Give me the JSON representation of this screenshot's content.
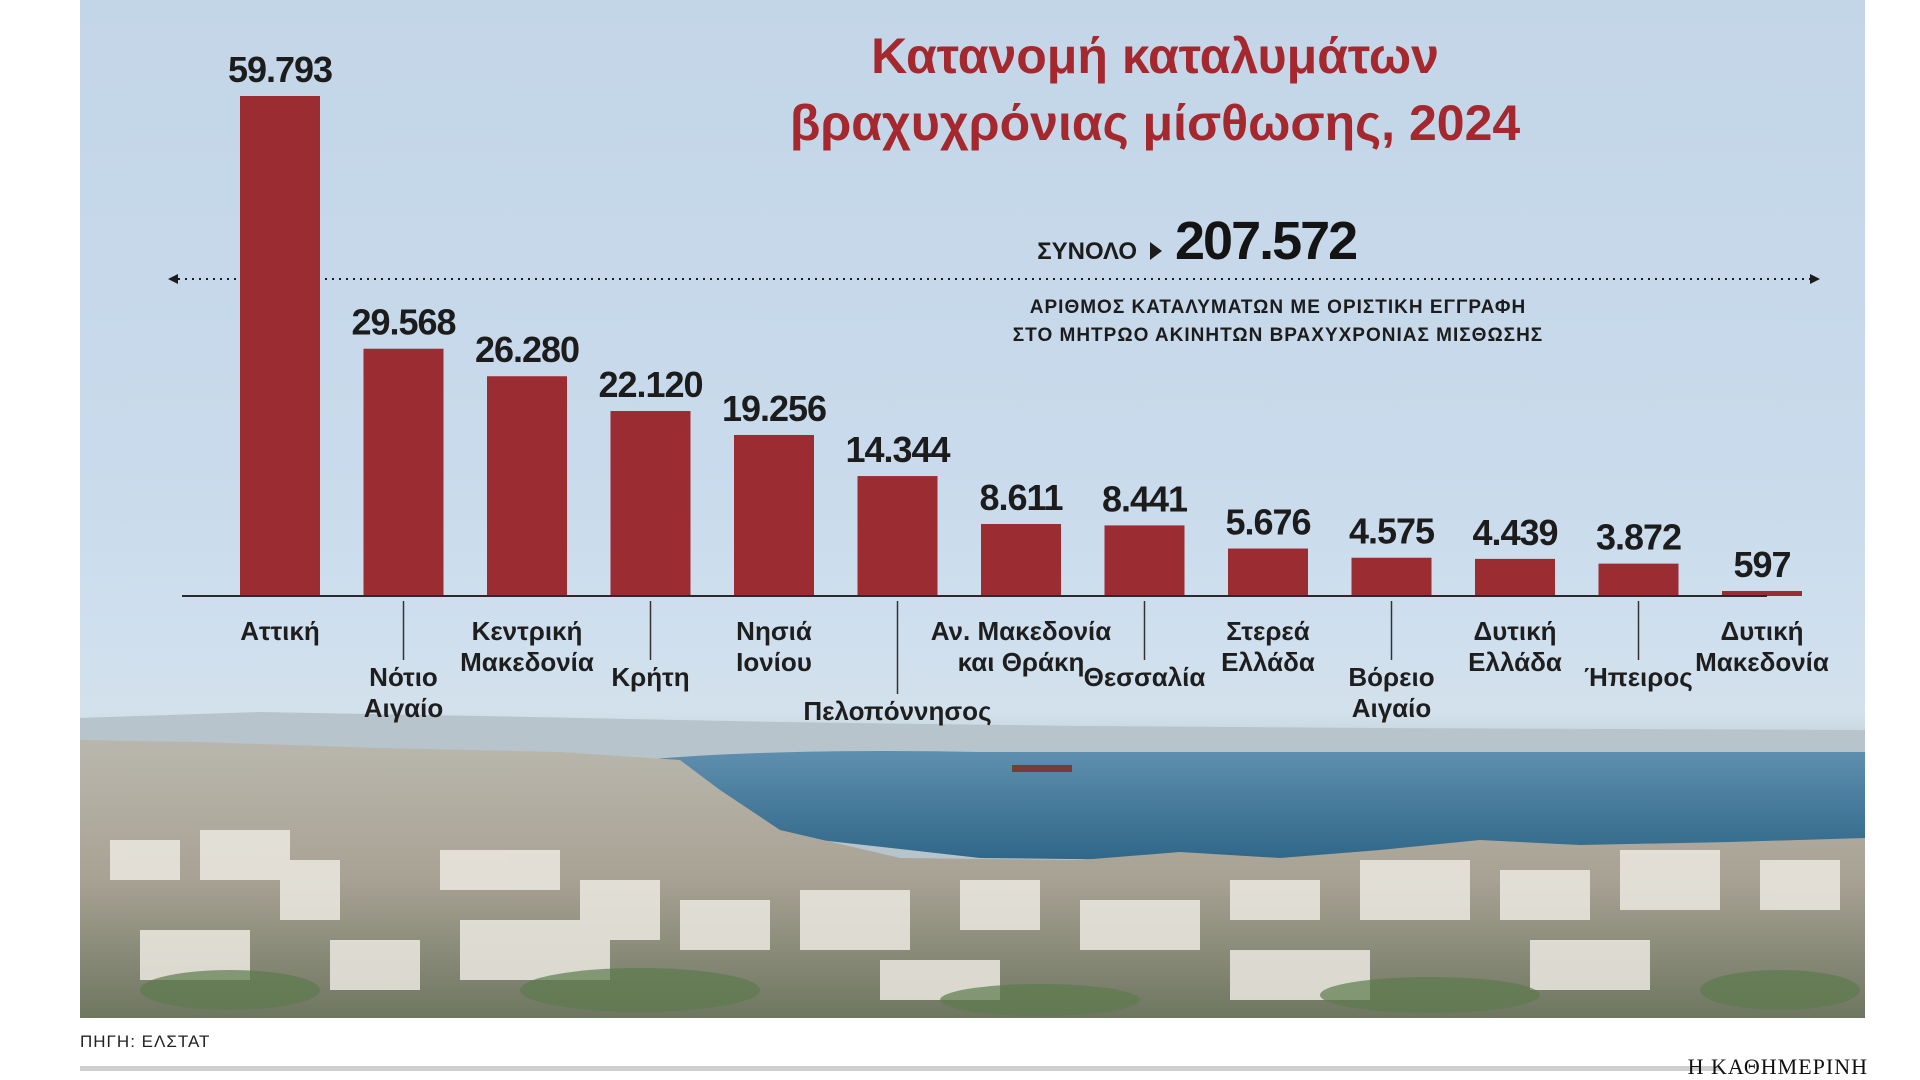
{
  "chart_data": {
    "type": "bar",
    "title_lines": [
      "Κατανομή καταλυμάτων",
      "βραχυχρόνιας μίσθωσης, 2024"
    ],
    "total_label": "ΣΥΝΟΛΟ",
    "total_value": "207.572",
    "subtitle_lines": [
      "ΑΡΙΘΜΟΣ ΚΑΤΑΛΥΜΑΤΩΝ ΜΕ ΟΡΙΣΤΙΚΗ ΕΓΓΡΑΦΗ",
      "ΣΤΟ ΜΗΤΡΩΟ ΑΚΙΝΗΤΩΝ ΒΡΑΧΥΧΡΟΝΙΑΣ ΜΙΣΘΩΣΗΣ"
    ],
    "bars": [
      {
        "category": [
          "Αττική"
        ],
        "value": 59793,
        "label": "59.793",
        "level": 0
      },
      {
        "category": [
          "Νότιο",
          "Αιγαίο"
        ],
        "value": 29568,
        "label": "29.568",
        "level": 1
      },
      {
        "category": [
          "Κεντρική",
          "Μακεδονία"
        ],
        "value": 26280,
        "label": "26.280",
        "level": 0
      },
      {
        "category": [
          "Κρήτη"
        ],
        "value": 22120,
        "label": "22.120",
        "level": 1
      },
      {
        "category": [
          "Νησιά",
          "Ιονίου"
        ],
        "value": 19256,
        "label": "19.256",
        "level": 0
      },
      {
        "category": [
          "Πελοπόννησος"
        ],
        "value": 14344,
        "label": "14.344",
        "level": 2
      },
      {
        "category": [
          "Αν. Μακεδονία",
          "και Θράκη"
        ],
        "value": 8611,
        "label": "8.611",
        "level": 0
      },
      {
        "category": [
          "Θεσσαλία"
        ],
        "value": 8441,
        "label": "8.441",
        "level": 1
      },
      {
        "category": [
          "Στερεά",
          "Ελλάδα"
        ],
        "value": 5676,
        "label": "5.676",
        "level": 0
      },
      {
        "category": [
          "Βόρειο",
          "Αιγαίο"
        ],
        "value": 4575,
        "label": "4.575",
        "level": 1
      },
      {
        "category": [
          "Δυτική",
          "Ελλάδα"
        ],
        "value": 4439,
        "label": "4.439",
        "level": 0
      },
      {
        "category": [
          "Ήπειρος"
        ],
        "value": 3872,
        "label": "3.872",
        "level": 1
      },
      {
        "category": [
          "Δυτική",
          "Μακεδονία"
        ],
        "value": 597,
        "label": "597",
        "level": 0
      }
    ],
    "ylim": [
      0,
      59793
    ],
    "colors": {
      "bar": "#9b2c32",
      "title": "#a5282e",
      "text": "#1c1c1c"
    }
  },
  "footer": {
    "source": "ΠΗΓΗ: ΕΛΣΤΑΤ",
    "brand": "Η ΚΑΘΗΜΕΡΙΝΗ"
  }
}
